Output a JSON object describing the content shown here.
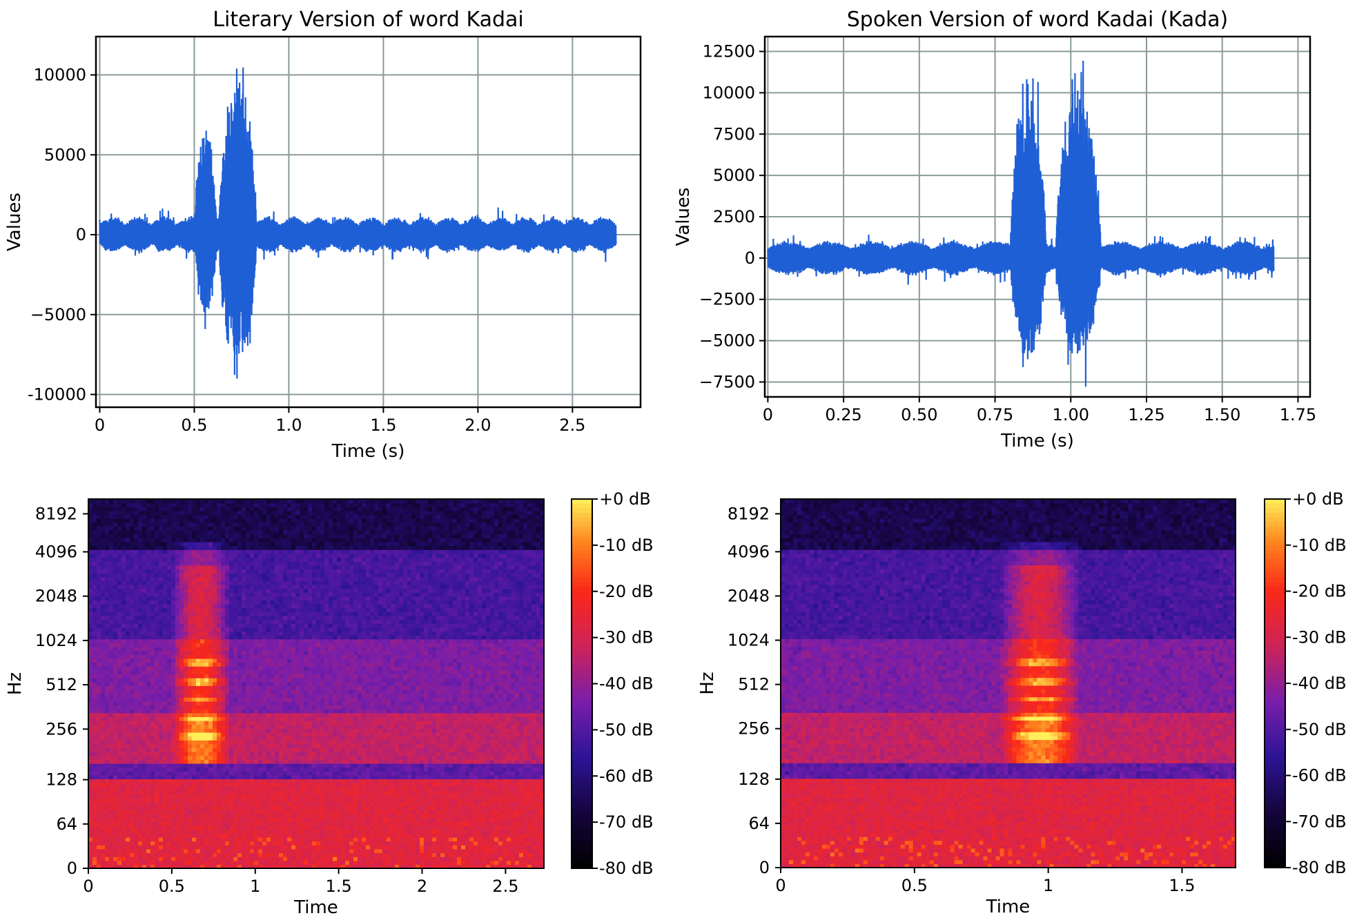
{
  "chart_data": [
    {
      "id": "wave-literary",
      "type": "line",
      "title": "Literary Version of word Kadai",
      "xlabel": "Time (s)",
      "ylabel": "Values",
      "xlim": [
        -0.02,
        2.86
      ],
      "ylim": [
        -10800,
        12400
      ],
      "xticks": [
        0,
        0.5,
        1.0,
        1.5,
        2.0,
        2.5
      ],
      "xtick_labels": [
        "0",
        "0.5",
        "1.0",
        "1.5",
        "2.0",
        "2.5"
      ],
      "yticks": [
        -10000,
        -5000,
        0,
        5000,
        10000
      ],
      "ytick_labels": [
        "-10000",
        "−5000",
        "0",
        "5000",
        "10000"
      ],
      "grid": true,
      "color": "#1f5fd6",
      "duration": 2.73,
      "baseline_amplitude": 1200,
      "bursts": [
        {
          "start": 0.5,
          "end": 0.62,
          "peak": 7500,
          "min": -5800
        },
        {
          "start": 0.63,
          "end": 0.83,
          "peak": 11400,
          "min": -9800
        }
      ]
    },
    {
      "id": "wave-spoken",
      "type": "line",
      "title": "Spoken Version of word Kadai (Kada)",
      "xlabel": "Time (s)",
      "ylabel": "Values",
      "xlim": [
        -0.01,
        1.79
      ],
      "ylim": [
        -8400,
        13400
      ],
      "xticks": [
        0,
        0.25,
        0.5,
        0.75,
        1.0,
        1.25,
        1.5,
        1.75
      ],
      "xtick_labels": [
        "0",
        "0.25",
        "0.50",
        "0.75",
        "1.00",
        "1.25",
        "1.50",
        "1.75"
      ],
      "yticks": [
        -7500,
        -5000,
        -2500,
        0,
        2500,
        5000,
        7500,
        10000,
        12500
      ],
      "ytick_labels": [
        "−7500",
        "−5000",
        "−2500",
        "0",
        "2500",
        "5000",
        "7500",
        "10000",
        "12500"
      ],
      "grid": true,
      "color": "#1f5fd6",
      "duration": 1.67,
      "baseline_amplitude": 1100,
      "bursts": [
        {
          "start": 0.8,
          "end": 0.92,
          "peak": 11600,
          "min": -7200
        },
        {
          "start": 0.95,
          "end": 1.1,
          "peak": 12500,
          "min": -6500
        }
      ]
    },
    {
      "id": "spec-literary",
      "type": "heatmap",
      "xlabel": "Time",
      "ylabel": "Hz",
      "xlim": [
        0,
        2.73
      ],
      "xticks": [
        0,
        0.5,
        1,
        1.5,
        2,
        2.5
      ],
      "xtick_labels": [
        "0",
        "0.5",
        "1",
        "1.5",
        "2",
        "2.5"
      ],
      "ytick_labels": [
        "0",
        "64",
        "128",
        "256",
        "512",
        "1024",
        "2048",
        "4096",
        "8192"
      ],
      "colorbar_labels": [
        "+0 dB",
        "-10 dB",
        "-20 dB",
        "-30 dB",
        "-40 dB",
        "-50 dB",
        "-60 dB",
        "-70 dB",
        "-80 dB"
      ],
      "colormap": "magma-like",
      "speech_regions": [
        {
          "start": 0.5,
          "end": 0.85
        }
      ]
    },
    {
      "id": "spec-spoken",
      "type": "heatmap",
      "xlabel": "Time",
      "ylabel": "Hz",
      "xlim": [
        0,
        1.7
      ],
      "xticks": [
        0,
        0.5,
        1,
        1.5
      ],
      "xtick_labels": [
        "0",
        "0.5",
        "1",
        "1.5"
      ],
      "ytick_labels": [
        "0",
        "64",
        "128",
        "256",
        "512",
        "1024",
        "2048",
        "4096",
        "8192"
      ],
      "colorbar_labels": [
        "+0 dB",
        "-10 dB",
        "-20 dB",
        "-30 dB",
        "-40 dB",
        "-50 dB",
        "-60 dB",
        "-70 dB",
        "-80 dB"
      ],
      "colormap": "magma-like",
      "speech_regions": [
        {
          "start": 0.82,
          "end": 1.12
        }
      ]
    }
  ]
}
